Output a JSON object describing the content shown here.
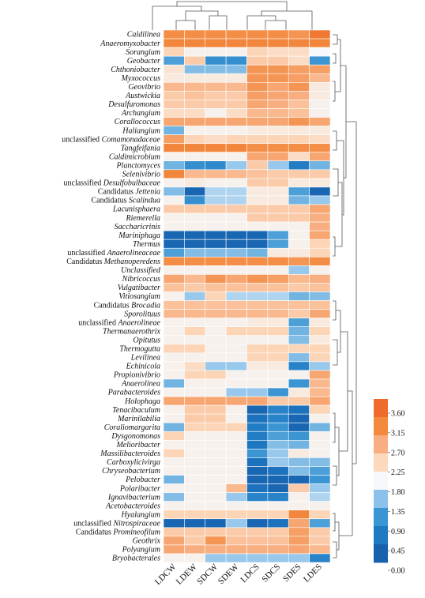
{
  "chart_data": {
    "type": "heatmap",
    "columns": [
      "LDCW",
      "LDEW",
      "SDCW",
      "SDEW",
      "LDCS",
      "SDCS",
      "SDES",
      "LDES"
    ],
    "rows": [
      {
        "prefix": "",
        "name": "Caldilinea",
        "values": [
          3.1,
          3.1,
          3.1,
          3.1,
          3.1,
          3.1,
          3.0,
          3.4
        ]
      },
      {
        "prefix": "",
        "name": "Anaeromyxobacter",
        "values": [
          3.2,
          3.2,
          3.2,
          3.2,
          3.2,
          3.2,
          3.2,
          3.2
        ]
      },
      {
        "prefix": "",
        "name": "Sorangium",
        "values": [
          2.3,
          1.9,
          1.9,
          1.9,
          2.3,
          2.2,
          2.2,
          1.8
        ]
      },
      {
        "prefix": "",
        "name": "Geobacter",
        "values": [
          1.0,
          2.4,
          0.8,
          0.8,
          2.4,
          2.4,
          2.2,
          0.9
        ]
      },
      {
        "prefix": "",
        "name": "Chthoniobacter",
        "values": [
          2.1,
          1.3,
          1.3,
          1.3,
          3.0,
          3.0,
          2.9,
          2.9
        ]
      },
      {
        "prefix": "",
        "name": "Myxococcus",
        "values": [
          2.0,
          2.0,
          2.0,
          2.0,
          3.0,
          3.0,
          2.9,
          2.6
        ]
      },
      {
        "prefix": "",
        "name": "Geovibrio",
        "values": [
          2.6,
          2.6,
          2.6,
          2.6,
          3.0,
          2.8,
          3.0,
          2.0
        ]
      },
      {
        "prefix": "",
        "name": "Austwickia",
        "values": [
          2.4,
          2.5,
          2.4,
          2.4,
          2.9,
          2.8,
          2.7,
          2.0
        ]
      },
      {
        "prefix": "",
        "name": "Desulfuromonas",
        "values": [
          2.4,
          2.4,
          2.4,
          2.4,
          2.8,
          2.7,
          2.5,
          1.9
        ]
      },
      {
        "prefix": "",
        "name": "Archangium",
        "values": [
          2.2,
          2.2,
          1.9,
          2.2,
          2.6,
          2.6,
          2.5,
          1.9
        ]
      },
      {
        "prefix": "",
        "name": "Corallococcus",
        "values": [
          2.8,
          2.8,
          2.8,
          2.8,
          2.8,
          2.8,
          3.0,
          2.8
        ]
      },
      {
        "prefix": "",
        "name": "Haliangium",
        "values": [
          1.2,
          1.9,
          1.9,
          1.9,
          2.0,
          2.0,
          2.0,
          2.0
        ]
      },
      {
        "prefix": "unclassified ",
        "name": "Comamonadaceae",
        "values": [
          2.9,
          2.3,
          2.2,
          2.3,
          2.3,
          2.3,
          2.3,
          2.2
        ]
      },
      {
        "prefix": "",
        "name": "Tangfeifania",
        "values": [
          3.2,
          3.2,
          3.2,
          3.2,
          3.1,
          3.1,
          3.1,
          3.1
        ]
      },
      {
        "prefix": "",
        "name": "Caldimicrobium",
        "values": [
          1.9,
          1.9,
          1.9,
          1.9,
          2.8,
          2.8,
          2.2,
          2.8
        ]
      },
      {
        "prefix": "",
        "name": "Planctomyces",
        "values": [
          1.2,
          0.8,
          0.7,
          1.4,
          2.4,
          1.4,
          0.5,
          1.2
        ]
      },
      {
        "prefix": "",
        "name": "Selenivibrio",
        "values": [
          3.2,
          2.6,
          2.6,
          2.6,
          2.5,
          2.4,
          2.4,
          2.4
        ]
      },
      {
        "prefix": "unclassified ",
        "name": "Desulfobulbaceae",
        "values": [
          1.9,
          2.0,
          1.9,
          1.9,
          2.4,
          2.4,
          2.0,
          2.0
        ]
      },
      {
        "prefix": "Candidatus ",
        "name": "Jettenia",
        "values": [
          1.3,
          0.1,
          1.5,
          1.5,
          2.0,
          2.0,
          1.0,
          0.1
        ]
      },
      {
        "prefix": "Candidatus ",
        "name": "Scalindua",
        "values": [
          1.9,
          0.8,
          1.5,
          1.5,
          2.0,
          2.0,
          1.2,
          1.4
        ]
      },
      {
        "prefix": "",
        "name": "Lacunisphaera",
        "values": [
          2.4,
          2.4,
          2.4,
          2.4,
          2.4,
          2.4,
          2.4,
          2.8
        ]
      },
      {
        "prefix": "",
        "name": "Riemerella",
        "values": [
          1.9,
          1.9,
          1.9,
          1.9,
          2.4,
          2.4,
          2.4,
          2.7
        ]
      },
      {
        "prefix": "",
        "name": "Saccharicrinis",
        "values": [
          1.9,
          1.9,
          1.9,
          1.9,
          1.9,
          1.9,
          1.9,
          2.7
        ]
      },
      {
        "prefix": "",
        "name": "Mariniphaga",
        "values": [
          0.1,
          0.1,
          0.1,
          0.1,
          0.1,
          1.0,
          1.9,
          2.8
        ]
      },
      {
        "prefix": "",
        "name": "Thermus",
        "values": [
          0.1,
          0.1,
          0.1,
          0.1,
          0.1,
          1.0,
          1.9,
          2.3
        ]
      },
      {
        "prefix": "unclassified ",
        "name": "Anaerolineaceae",
        "values": [
          1.0,
          1.3,
          1.3,
          1.3,
          1.2,
          2.0,
          2.0,
          2.3
        ]
      },
      {
        "prefix": "Candidatus ",
        "name": "Methanoperedens",
        "values": [
          3.1,
          3.1,
          3.1,
          3.1,
          3.1,
          3.1,
          3.0,
          3.1
        ]
      },
      {
        "prefix": "",
        "name": "Unclassified",
        "values": [
          1.9,
          1.9,
          1.9,
          1.9,
          1.9,
          1.9,
          1.4,
          1.9
        ]
      },
      {
        "prefix": "",
        "name": "Nibricoccus",
        "values": [
          2.8,
          2.6,
          3.0,
          2.8,
          3.0,
          2.9,
          2.6,
          2.7
        ]
      },
      {
        "prefix": "",
        "name": "Vulgatibacter",
        "values": [
          2.5,
          2.4,
          2.5,
          2.5,
          2.5,
          2.5,
          2.4,
          2.5
        ]
      },
      {
        "prefix": "",
        "name": "Vitiosangium",
        "values": [
          1.9,
          1.4,
          2.3,
          1.5,
          1.5,
          1.5,
          1.2,
          1.3
        ]
      },
      {
        "prefix": "Candidatus ",
        "name": "Brocadia",
        "values": [
          2.5,
          2.5,
          2.5,
          2.5,
          2.5,
          2.5,
          2.5,
          2.5
        ]
      },
      {
        "prefix": "",
        "name": "Sporolituus",
        "values": [
          2.6,
          2.6,
          2.6,
          2.6,
          2.6,
          2.6,
          2.4,
          2.8
        ]
      },
      {
        "prefix": "unclassified ",
        "name": "Anaerolineae",
        "values": [
          1.9,
          1.9,
          1.9,
          1.9,
          2.0,
          2.0,
          1.0,
          2.0
        ]
      },
      {
        "prefix": "",
        "name": "Thermanaerothrix",
        "values": [
          1.9,
          2.3,
          1.9,
          2.3,
          2.3,
          2.3,
          1.2,
          2.3
        ]
      },
      {
        "prefix": "",
        "name": "Opitutus",
        "values": [
          1.9,
          1.9,
          1.9,
          1.9,
          1.9,
          1.9,
          1.3,
          2.0
        ]
      },
      {
        "prefix": "",
        "name": "Thermogutta",
        "values": [
          2.3,
          2.3,
          1.9,
          1.9,
          2.3,
          2.3,
          2.3,
          2.3
        ]
      },
      {
        "prefix": "",
        "name": "Levilinea",
        "values": [
          1.9,
          1.9,
          1.9,
          1.9,
          2.3,
          2.3,
          1.3,
          2.3
        ]
      },
      {
        "prefix": "",
        "name": "Echinicola",
        "values": [
          1.9,
          2.2,
          1.4,
          1.4,
          2.0,
          2.0,
          0.6,
          1.4
        ]
      },
      {
        "prefix": "",
        "name": "Propionivibrio",
        "values": [
          1.9,
          2.3,
          2.3,
          1.9,
          1.9,
          1.9,
          1.9,
          2.8
        ]
      },
      {
        "prefix": "",
        "name": "Anaerolinea",
        "values": [
          1.2,
          1.9,
          1.9,
          1.9,
          1.9,
          1.9,
          0.9,
          2.6
        ]
      },
      {
        "prefix": "",
        "name": "Parabacteroides",
        "values": [
          1.9,
          1.9,
          1.9,
          1.4,
          1.4,
          0.9,
          2.0,
          2.6
        ]
      },
      {
        "prefix": "",
        "name": "Holophaga",
        "values": [
          2.8,
          2.8,
          2.8,
          2.8,
          2.8,
          2.4,
          2.4,
          2.8
        ]
      },
      {
        "prefix": "",
        "name": "Tenacibaculum",
        "values": [
          1.9,
          2.4,
          2.4,
          1.9,
          0.1,
          0.6,
          0.3,
          2.3
        ]
      },
      {
        "prefix": "",
        "name": "Marinilabilia",
        "values": [
          1.9,
          2.4,
          2.4,
          1.9,
          0.3,
          0.6,
          0.1,
          1.9
        ]
      },
      {
        "prefix": "",
        "name": "Coraliomargarita",
        "values": [
          1.2,
          2.3,
          2.3,
          2.3,
          0.5,
          0.9,
          0.1,
          1.2
        ]
      },
      {
        "prefix": "",
        "name": "Dysgonomonas",
        "values": [
          2.3,
          1.9,
          1.9,
          1.9,
          0.5,
          1.0,
          0.9,
          1.9
        ]
      },
      {
        "prefix": "",
        "name": "Melioribacter",
        "values": [
          1.9,
          1.9,
          1.9,
          1.9,
          0.4,
          1.3,
          1.2,
          1.9
        ]
      },
      {
        "prefix": "",
        "name": "Massilibacteroides",
        "values": [
          2.3,
          1.9,
          1.9,
          1.9,
          0.9,
          1.4,
          2.0,
          1.9
        ]
      },
      {
        "prefix": "",
        "name": "Carboxylicivirga",
        "values": [
          1.9,
          1.9,
          1.9,
          1.9,
          0.3,
          1.4,
          1.3,
          1.3
        ]
      },
      {
        "prefix": "",
        "name": "Chryseobacterium",
        "values": [
          1.9,
          1.9,
          1.9,
          1.9,
          0.1,
          0.3,
          1.3,
          1.0
        ]
      },
      {
        "prefix": "",
        "name": "Pelobacter",
        "values": [
          1.2,
          1.9,
          1.9,
          1.9,
          0.1,
          0.1,
          0.1,
          0.9
        ]
      },
      {
        "prefix": "",
        "name": "Polaribacter",
        "values": [
          1.9,
          1.9,
          1.9,
          2.6,
          0.3,
          0.1,
          2.4,
          1.4
        ]
      },
      {
        "prefix": "",
        "name": "Ignavibacterium",
        "values": [
          1.3,
          1.9,
          1.9,
          1.4,
          0.6,
          0.6,
          1.9,
          1.5
        ]
      },
      {
        "prefix": "",
        "name": "Acetobacteroides",
        "values": [
          1.9,
          1.9,
          1.9,
          1.9,
          1.9,
          1.9,
          1.9,
          1.9
        ]
      },
      {
        "prefix": "",
        "name": "Hyalangium",
        "values": [
          2.3,
          2.3,
          2.3,
          2.3,
          2.3,
          2.3,
          3.2,
          2.3
        ]
      },
      {
        "prefix": "unclassified ",
        "name": "Nitrospiraceae",
        "values": [
          0.1,
          0.1,
          0.1,
          1.4,
          0.1,
          0.3,
          2.8,
          1.0
        ]
      },
      {
        "prefix": "Candidatus ",
        "name": "Promineofilum",
        "values": [
          2.4,
          2.4,
          2.4,
          2.4,
          2.4,
          2.4,
          2.9,
          2.4
        ]
      },
      {
        "prefix": "",
        "name": "Geothrix",
        "values": [
          2.8,
          2.4,
          3.0,
          2.5,
          2.5,
          2.5,
          2.9,
          2.4
        ]
      },
      {
        "prefix": "",
        "name": "Polyangium",
        "values": [
          2.8,
          2.7,
          2.7,
          2.7,
          2.7,
          2.7,
          2.8,
          2.6
        ]
      },
      {
        "prefix": "",
        "name": "Bryobacterales",
        "values": [
          1.9,
          1.9,
          1.4,
          1.4,
          1.4,
          1.4,
          1.4,
          0.6
        ]
      }
    ],
    "color_scale": {
      "ticks": [
        "3.60",
        "3.15",
        "2.70",
        "2.25",
        "1.80",
        "1.35",
        "0.90",
        "0.45",
        "0.00"
      ],
      "min": 0.0,
      "max": 3.6,
      "stops": [
        {
          "v": 0.0,
          "color": "#1761ad"
        },
        {
          "v": 0.45,
          "color": "#1f7ac3"
        },
        {
          "v": 0.9,
          "color": "#3b95d2"
        },
        {
          "v": 1.35,
          "color": "#8cc2e9"
        },
        {
          "v": 1.8,
          "color": "#f6f8fb"
        },
        {
          "v": 2.25,
          "color": "#fcd9bd"
        },
        {
          "v": 2.7,
          "color": "#f8ae80"
        },
        {
          "v": 3.15,
          "color": "#f3893e"
        },
        {
          "v": 3.6,
          "color": "#ee6b2b"
        }
      ]
    },
    "legend_placement": "right",
    "grid": true
  }
}
